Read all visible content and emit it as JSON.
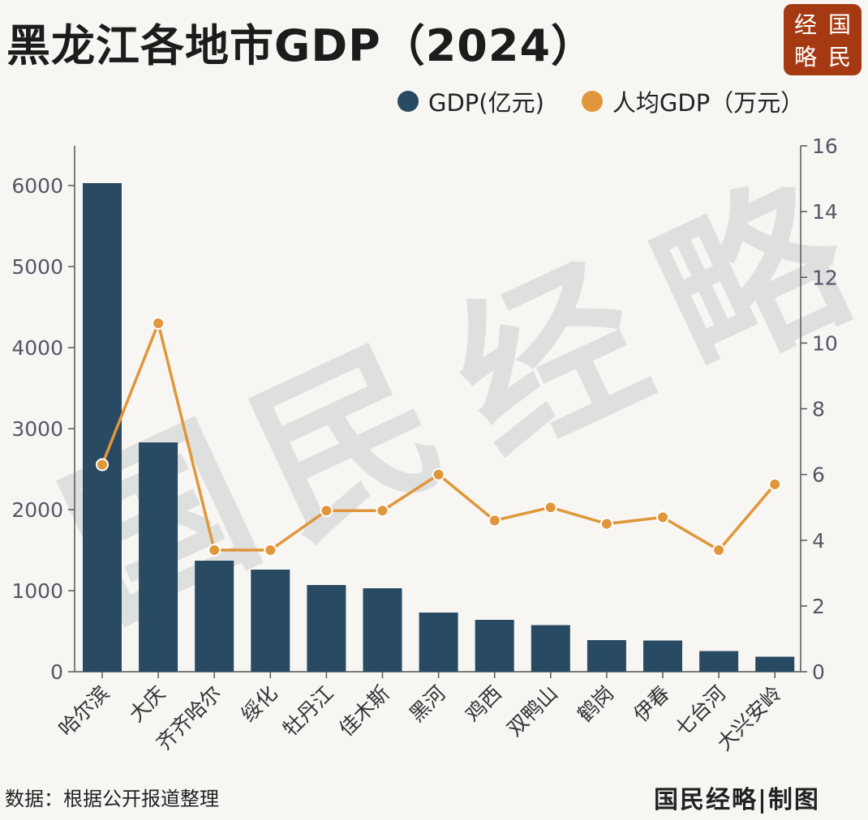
{
  "title": "黑龙江各地市GDP（2024）",
  "logo": [
    "经",
    "国",
    "略",
    "民"
  ],
  "legend": [
    {
      "label": "GDP(亿元)",
      "color": "#284a62"
    },
    {
      "label": "人均GDP（万元）",
      "color": "#e0963a"
    }
  ],
  "watermark": [
    "国",
    "民",
    "经",
    "略"
  ],
  "footer": {
    "source": "数据：根据公开报道整理",
    "credit": "国民经略|制图"
  },
  "colors": {
    "bar": "#284a62",
    "line": "#e0963a",
    "axis": "#555555",
    "tick_text": "#555566"
  },
  "chart_data": {
    "type": "bar",
    "categories": [
      "哈尔滨",
      "大庆",
      "齐齐哈尔",
      "绥化",
      "牡丹江",
      "佳木斯",
      "黑河",
      "鸡西",
      "双鸭山",
      "鹤岗",
      "伊春",
      "七台河",
      "大兴安岭"
    ],
    "series": [
      {
        "name": "GDP(亿元)",
        "type": "bar",
        "axis": "left",
        "values": [
          6030,
          2830,
          1370,
          1260,
          1070,
          1030,
          730,
          640,
          575,
          390,
          385,
          255,
          185
        ]
      },
      {
        "name": "人均GDP（万元）",
        "type": "line",
        "axis": "right",
        "values": [
          6.3,
          10.6,
          3.7,
          3.7,
          4.9,
          4.9,
          6.0,
          4.6,
          5.0,
          4.5,
          4.7,
          3.7,
          5.7
        ]
      }
    ],
    "y_left": {
      "lim": [
        0,
        6500
      ],
      "ticks": [
        0,
        1000,
        2000,
        3000,
        4000,
        5000,
        6000
      ]
    },
    "y_right": {
      "lim": [
        0,
        16
      ],
      "ticks": [
        0,
        2,
        4,
        6,
        8,
        10,
        12,
        14,
        16
      ]
    },
    "grid": false,
    "legend_position": "top-right"
  }
}
